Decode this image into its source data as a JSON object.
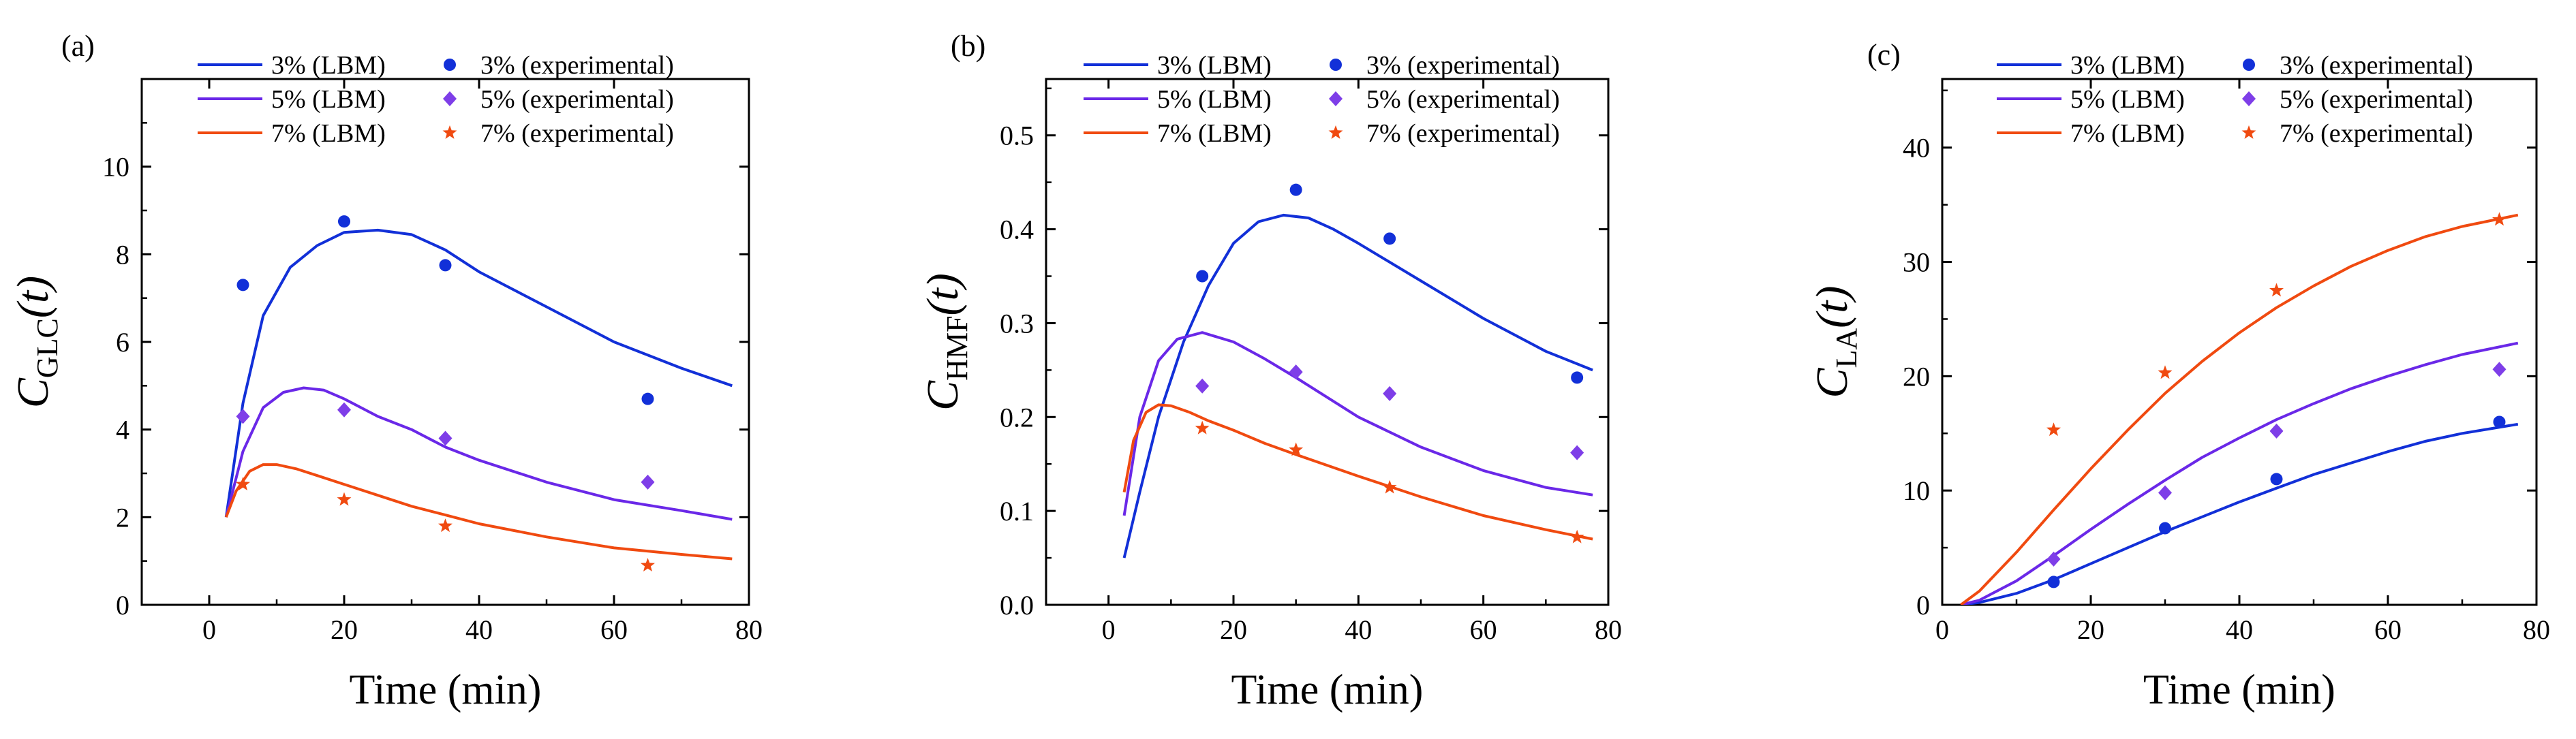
{
  "chart_data": [
    {
      "type": "line",
      "panel_label": "(a)",
      "xlabel": "Time (min)",
      "ylabel_main": "C",
      "ylabel_sub": "GLC",
      "ylabel_tail": "(t)",
      "xlim": [
        -10,
        80
      ],
      "ylim": [
        0,
        12
      ],
      "xticks": [
        0,
        20,
        40,
        60,
        80
      ],
      "yticks": [
        0,
        2,
        4,
        6,
        8,
        10
      ],
      "x_tick_labels": [
        "0",
        "20",
        "40",
        "60",
        "80"
      ],
      "y_tick_labels": [
        "0",
        "2",
        "4",
        "6",
        "8",
        "10"
      ],
      "model_series": [
        {
          "name": "3% (LBM)",
          "color": "#1230d8",
          "x": [
            2.5,
            5,
            8,
            12,
            16,
            20,
            25,
            30,
            35,
            40,
            50,
            60,
            70,
            77.5
          ],
          "y": [
            2.0,
            4.6,
            6.6,
            7.7,
            8.2,
            8.5,
            8.55,
            8.45,
            8.1,
            7.6,
            6.8,
            6.0,
            5.4,
            5.0
          ]
        },
        {
          "name": "5% (LBM)",
          "color": "#6a28e8",
          "x": [
            2.5,
            5,
            8,
            11,
            14,
            17,
            20,
            25,
            30,
            35,
            40,
            50,
            60,
            70,
            77.5
          ],
          "y": [
            2.0,
            3.5,
            4.5,
            4.85,
            4.95,
            4.9,
            4.7,
            4.3,
            4.0,
            3.6,
            3.3,
            2.8,
            2.4,
            2.15,
            1.95
          ]
        },
        {
          "name": "7% (LBM)",
          "color": "#f04a10",
          "x": [
            2.5,
            4,
            6,
            8,
            10,
            13,
            16,
            20,
            25,
            30,
            35,
            40,
            50,
            60,
            70,
            77.5
          ],
          "y": [
            2.0,
            2.6,
            3.05,
            3.2,
            3.2,
            3.1,
            2.95,
            2.75,
            2.5,
            2.25,
            2.05,
            1.85,
            1.55,
            1.3,
            1.15,
            1.05
          ]
        }
      ],
      "experimental_series": [
        {
          "name": "3% (experimental)",
          "marker": "circle",
          "color": "#1230d8",
          "x": [
            5,
            20,
            35,
            65
          ],
          "y": [
            7.3,
            8.75,
            7.75,
            4.7
          ]
        },
        {
          "name": "5% (experimental)",
          "marker": "diamond",
          "color": "#7e3ee8",
          "x": [
            5,
            20,
            35,
            65
          ],
          "y": [
            4.3,
            4.45,
            3.8,
            2.8
          ]
        },
        {
          "name": "7% (experimental)",
          "marker": "star",
          "color": "#f04a10",
          "x": [
            5,
            20,
            35,
            65
          ],
          "y": [
            2.75,
            2.4,
            1.8,
            0.9
          ]
        }
      ]
    },
    {
      "type": "line",
      "panel_label": "(b)",
      "xlabel": "Time (min)",
      "ylabel_main": "C",
      "ylabel_sub": "HMF",
      "ylabel_tail": "(t)",
      "xlim": [
        -10,
        80
      ],
      "ylim": [
        0,
        0.56
      ],
      "xticks": [
        0,
        20,
        40,
        60,
        80
      ],
      "yticks": [
        0,
        0.1,
        0.2,
        0.3,
        0.4,
        0.5
      ],
      "x_tick_labels": [
        "0",
        "20",
        "40",
        "60",
        "80"
      ],
      "y_tick_labels": [
        "0.0",
        "0.1",
        "0.2",
        "0.3",
        "0.4",
        "0.5"
      ],
      "model_series": [
        {
          "name": "3% (LBM)",
          "color": "#1230d8",
          "x": [
            2.5,
            5,
            8,
            12,
            16,
            20,
            24,
            28,
            32,
            36,
            40,
            50,
            60,
            70,
            77.5
          ],
          "y": [
            0.05,
            0.12,
            0.2,
            0.28,
            0.34,
            0.385,
            0.408,
            0.415,
            0.412,
            0.4,
            0.385,
            0.345,
            0.305,
            0.27,
            0.25
          ]
        },
        {
          "name": "5% (LBM)",
          "color": "#6a28e8",
          "x": [
            2.5,
            5,
            8,
            11,
            15,
            20,
            25,
            30,
            40,
            50,
            60,
            70,
            77.5
          ],
          "y": [
            0.095,
            0.2,
            0.26,
            0.283,
            0.29,
            0.28,
            0.262,
            0.242,
            0.2,
            0.168,
            0.143,
            0.125,
            0.117
          ]
        },
        {
          "name": "7% (LBM)",
          "color": "#f04a10",
          "x": [
            2.5,
            4,
            6,
            8,
            10,
            13,
            16,
            20,
            25,
            30,
            40,
            50,
            60,
            70,
            77.5
          ],
          "y": [
            0.12,
            0.175,
            0.205,
            0.213,
            0.212,
            0.205,
            0.196,
            0.186,
            0.172,
            0.16,
            0.137,
            0.115,
            0.095,
            0.08,
            0.07
          ]
        }
      ],
      "experimental_series": [
        {
          "name": "3% (experimental)",
          "marker": "circle",
          "color": "#1230d8",
          "x": [
            15,
            30,
            45,
            75
          ],
          "y": [
            0.35,
            0.442,
            0.39,
            0.242
          ]
        },
        {
          "name": "5% (experimental)",
          "marker": "diamond",
          "color": "#7e3ee8",
          "x": [
            15,
            30,
            45,
            75
          ],
          "y": [
            0.233,
            0.248,
            0.225,
            0.162
          ]
        },
        {
          "name": "7% (experimental)",
          "marker": "star",
          "color": "#f04a10",
          "x": [
            15,
            30,
            45,
            75
          ],
          "y": [
            0.188,
            0.165,
            0.125,
            0.072
          ]
        }
      ]
    },
    {
      "type": "line",
      "panel_label": "(c)",
      "xlabel": "Time (min)",
      "ylabel_main": "C",
      "ylabel_sub": "LA",
      "ylabel_tail": "(t)",
      "xlim": [
        0,
        80
      ],
      "ylim": [
        0,
        46
      ],
      "xticks": [
        0,
        20,
        40,
        60,
        80
      ],
      "yticks": [
        0,
        10,
        20,
        30,
        40
      ],
      "x_tick_labels": [
        "0",
        "20",
        "40",
        "60",
        "80"
      ],
      "y_tick_labels": [
        "0",
        "10",
        "20",
        "30",
        "40"
      ],
      "model_series": [
        {
          "name": "3% (LBM)",
          "color": "#1230d8",
          "x": [
            2.5,
            5,
            10,
            15,
            20,
            25,
            30,
            35,
            40,
            45,
            50,
            55,
            60,
            65,
            70,
            77.5
          ],
          "y": [
            0,
            0.2,
            1.0,
            2.2,
            3.6,
            5.0,
            6.4,
            7.7,
            9.0,
            10.2,
            11.4,
            12.4,
            13.4,
            14.3,
            15.0,
            15.8
          ]
        },
        {
          "name": "5% (LBM)",
          "color": "#6a28e8",
          "x": [
            2.5,
            5,
            10,
            15,
            20,
            25,
            30,
            35,
            40,
            45,
            50,
            55,
            60,
            65,
            70,
            77.5
          ],
          "y": [
            0,
            0.4,
            2.1,
            4.3,
            6.6,
            8.8,
            10.9,
            12.9,
            14.6,
            16.2,
            17.6,
            18.9,
            20.0,
            21.0,
            21.9,
            22.9
          ]
        },
        {
          "name": "7% (LBM)",
          "color": "#f04a10",
          "x": [
            2.5,
            5,
            10,
            15,
            20,
            25,
            30,
            35,
            40,
            45,
            50,
            55,
            60,
            65,
            70,
            77.5
          ],
          "y": [
            0,
            1.2,
            4.6,
            8.3,
            11.9,
            15.3,
            18.5,
            21.3,
            23.8,
            26.0,
            27.9,
            29.6,
            31.0,
            32.2,
            33.1,
            34.1
          ]
        }
      ],
      "experimental_series": [
        {
          "name": "3% (experimental)",
          "marker": "circle",
          "color": "#1230d8",
          "x": [
            15,
            30,
            45,
            75
          ],
          "y": [
            2.0,
            6.7,
            11.0,
            16.0
          ]
        },
        {
          "name": "5% (experimental)",
          "marker": "diamond",
          "color": "#7e3ee8",
          "x": [
            15,
            30,
            45,
            75
          ],
          "y": [
            4.0,
            9.8,
            15.2,
            20.6
          ]
        },
        {
          "name": "7% (experimental)",
          "marker": "star",
          "color": "#f04a10",
          "x": [
            15,
            30,
            45,
            75
          ],
          "y": [
            15.3,
            20.3,
            27.5,
            33.7
          ]
        }
      ]
    }
  ]
}
